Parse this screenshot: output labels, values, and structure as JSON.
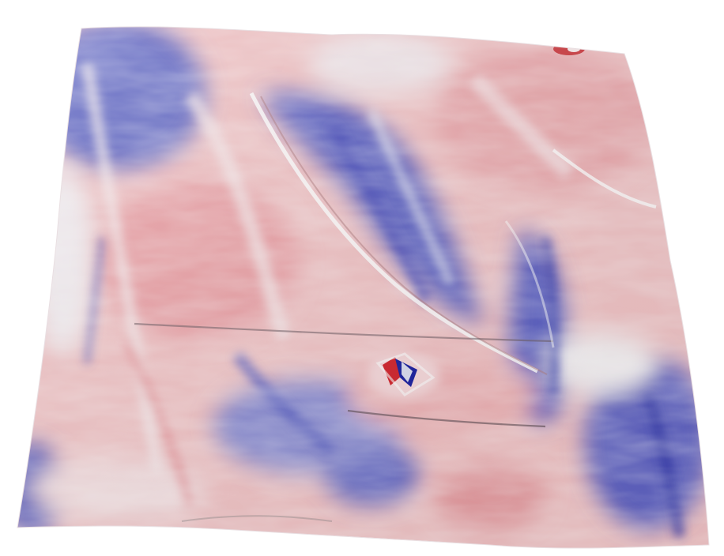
{
  "render": {
    "colormap": {
      "negative": "#2b2fb0",
      "neutral": "#ffffff",
      "positive": "#d63a3a"
    },
    "background": "#ffffff"
  }
}
